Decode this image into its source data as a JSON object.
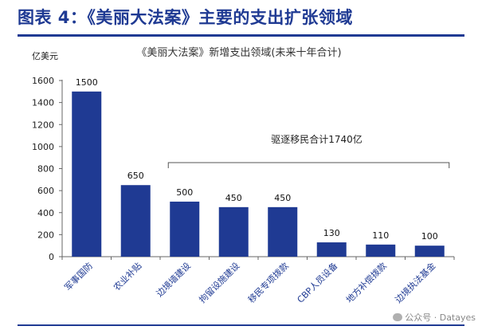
{
  "figure_title": "图表 4：《美丽大法案》主要的支出扩张领域",
  "watermark": "公众号 · Datayes",
  "colors": {
    "title": "#1f3a93",
    "bar": "#1f3a93",
    "annotation_bracket": "#555555"
  },
  "chart_data": {
    "type": "bar",
    "title": "《美丽大法案》新增支出领域(未来十年合计)",
    "ylabel": "亿美元",
    "ylim": [
      0,
      1600
    ],
    "yticks": [
      0,
      200,
      400,
      600,
      800,
      1000,
      1200,
      1400,
      1600
    ],
    "grid": false,
    "categories": [
      "军事国防",
      "农业补贴",
      "边境墙建设",
      "拘留设施建设",
      "移民专项拨款",
      "CBP人员设备",
      "地方补偿拨款",
      "边境执法基金"
    ],
    "values": [
      1500,
      650,
      500,
      450,
      450,
      130,
      110,
      100
    ],
    "annotation": {
      "text": "驱逐移民合计1740亿",
      "span_categories": [
        "边境墙建设",
        "边境执法基金"
      ]
    }
  }
}
